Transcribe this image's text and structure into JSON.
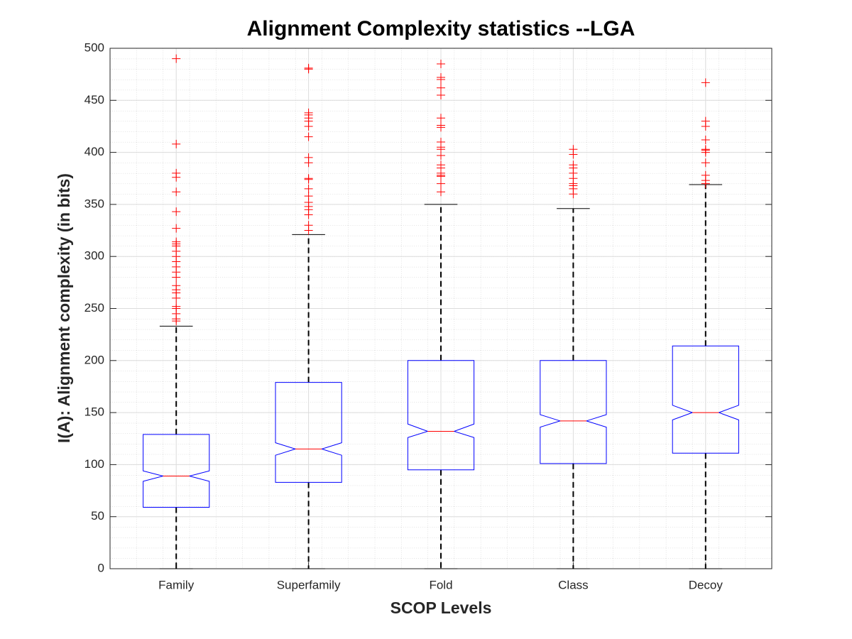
{
  "chart_data": {
    "type": "box",
    "title": "Alignment Complexity statistics --LGA",
    "x_label": "SCOP Levels",
    "y_label": "I(A): Alignment complexity (in bits)",
    "categories": [
      "Family",
      "Superfamily",
      "Fold",
      "Class",
      "Decoy"
    ],
    "ylim": [
      0,
      500
    ],
    "yticks": [
      0,
      50,
      100,
      150,
      200,
      250,
      300,
      350,
      400,
      450,
      500
    ],
    "grid": true,
    "box_color": "#0000ff",
    "median_color": "#ff0000",
    "outlier_color": "#ff0000",
    "whisker_color": "#000000",
    "boxes": [
      {
        "whisker_low": 0,
        "q1": 59,
        "notch_low": 84,
        "median": 89,
        "notch_high": 94,
        "q3": 129,
        "whisker_high": 233,
        "outliers": [
          490,
          408,
          380,
          376,
          362,
          343,
          327,
          314,
          312,
          310,
          305,
          300,
          295,
          290,
          285,
          280,
          272,
          268,
          265,
          260,
          252,
          250,
          245,
          240,
          238
        ]
      },
      {
        "whisker_low": 0,
        "q1": 83,
        "notch_low": 109,
        "median": 115,
        "notch_high": 121,
        "q3": 179,
        "whisker_high": 321,
        "outliers": [
          481,
          480,
          438,
          436,
          433,
          430,
          425,
          415,
          395,
          390,
          375,
          374,
          365,
          358,
          352,
          348,
          345,
          340,
          330,
          325
        ]
      },
      {
        "whisker_low": 0,
        "q1": 95,
        "notch_low": 126,
        "median": 132,
        "notch_high": 139,
        "q3": 200,
        "whisker_high": 350,
        "outliers": [
          485,
          472,
          470,
          462,
          455,
          433,
          426,
          424,
          410,
          405,
          403,
          397,
          388,
          385,
          380,
          378,
          377,
          370,
          362
        ]
      },
      {
        "whisker_low": 0,
        "q1": 101,
        "notch_low": 136,
        "median": 142,
        "notch_high": 148,
        "q3": 200,
        "whisker_high": 346,
        "outliers": [
          403,
          398,
          388,
          385,
          380,
          375,
          370,
          368,
          365,
          360
        ]
      },
      {
        "whisker_low": 0,
        "q1": 111,
        "notch_low": 143,
        "median": 150,
        "notch_high": 157,
        "q3": 214,
        "whisker_high": 369,
        "outliers": [
          467,
          430,
          425,
          412,
          403,
          402,
          400,
          390,
          378,
          373,
          370
        ]
      }
    ]
  }
}
